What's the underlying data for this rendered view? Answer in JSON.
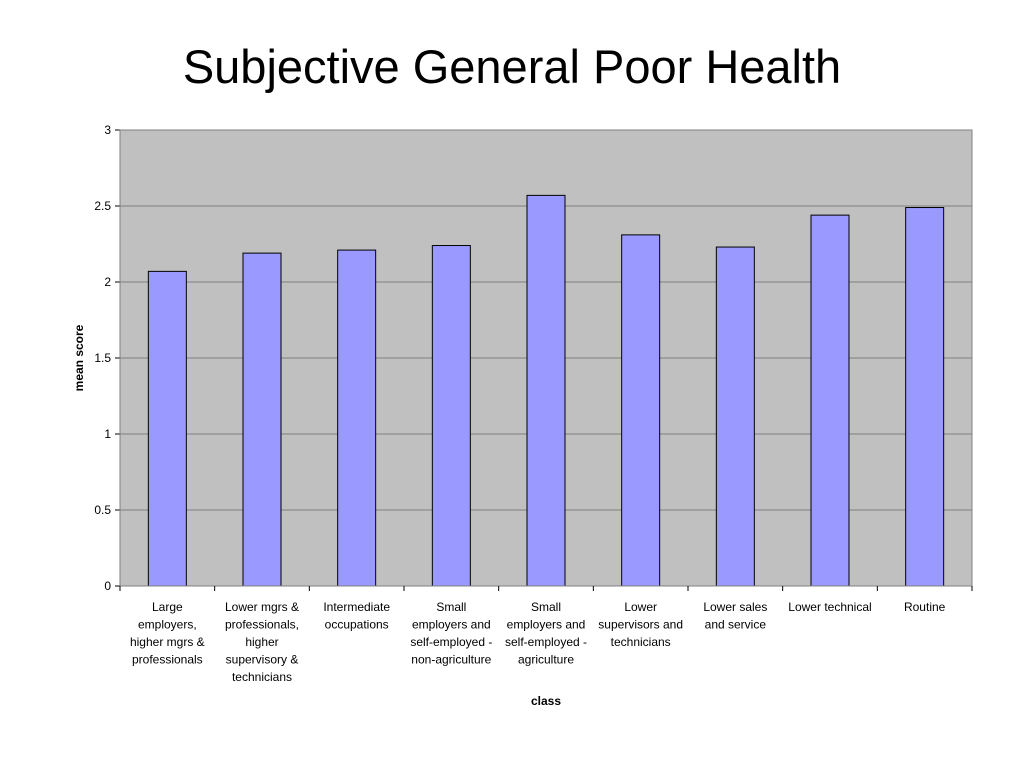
{
  "chart_data": {
    "type": "bar",
    "title": "Subjective General Poor Health",
    "xlabel": "class",
    "ylabel": "mean score",
    "ylim": [
      0,
      3
    ],
    "yticks": [
      "0",
      "0.5",
      "1",
      "1.5",
      "2",
      "2.5",
      "3"
    ],
    "grid": true,
    "legend": "none",
    "colors": {
      "bar": "#9999ff",
      "plot_bg": "#c0c0c0",
      "grid": "#808080"
    },
    "categories": [
      [
        "Large",
        "employers,",
        "higher mgrs &",
        "professionals"
      ],
      [
        "Lower mgrs &",
        "professionals,",
        "higher",
        "supervisory &",
        "technicians"
      ],
      [
        "Intermediate",
        "occupations"
      ],
      [
        "Small",
        "employers and",
        "self-employed -",
        "non-agriculture"
      ],
      [
        "Small",
        "employers and",
        "self-employed -",
        "agriculture"
      ],
      [
        "Lower",
        "supervisors and",
        "technicians"
      ],
      [
        "Lower sales",
        "and service"
      ],
      [
        "Lower technical"
      ],
      [
        "Routine"
      ]
    ],
    "values": [
      2.07,
      2.19,
      2.21,
      2.24,
      2.57,
      2.31,
      2.23,
      2.44,
      2.49
    ]
  }
}
